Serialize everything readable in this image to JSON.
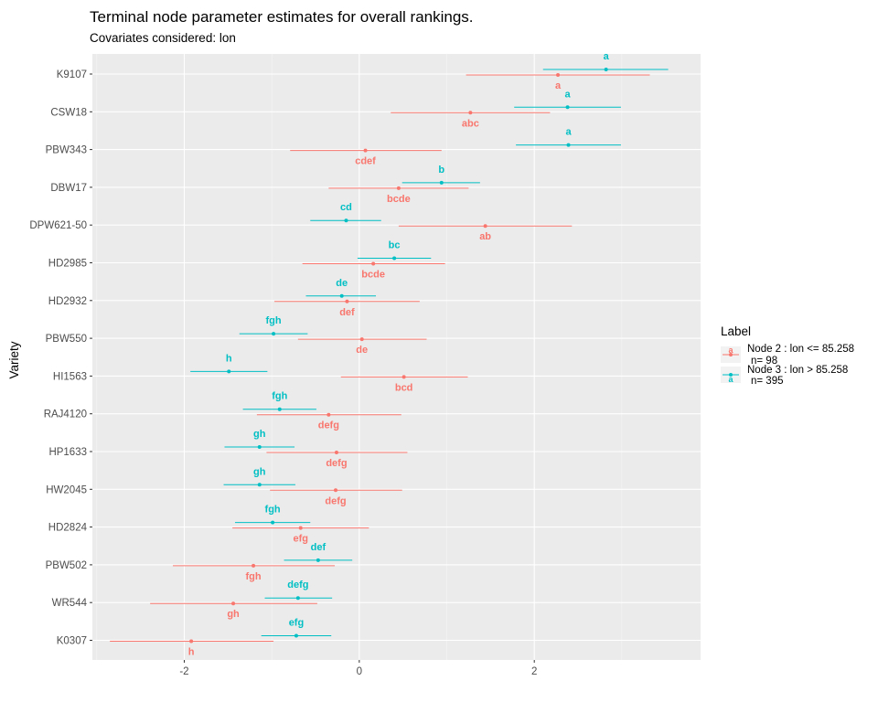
{
  "chart_data": {
    "type": "scatter",
    "title": "Terminal node parameter estimates for overall rankings.",
    "subtitle": "Covariates considered: lon",
    "xlabel": "",
    "ylabel": "Variety",
    "xlim": [
      -3.05,
      3.9
    ],
    "x_ticks": [
      "-2",
      "0",
      "2"
    ],
    "x_tick_values": [
      -2,
      0,
      2
    ],
    "categories": [
      "K9107",
      "CSW18",
      "PBW343",
      "DBW17",
      "DPW621-50",
      "HD2985",
      "HD2932",
      "PBW550",
      "HI1563",
      "RAJ4120",
      "HP1633",
      "HW2045",
      "HD2824",
      "PBW502",
      "WR544",
      "K0307"
    ],
    "legend": {
      "title": "Label",
      "position": "right",
      "entries": [
        {
          "line1": "Node 2 : lon <= 85.258",
          "line2": "n= 98"
        },
        {
          "line1": "Node 3 : lon > 85.258",
          "line2": "n= 395"
        }
      ]
    },
    "grid": true,
    "series": [
      {
        "color": "#F8766D",
        "legend_glyph": "a",
        "points": [
          {
            "est": 2.27,
            "lo": 1.22,
            "hi": 3.32,
            "group": "a"
          },
          {
            "est": 1.27,
            "lo": 0.36,
            "hi": 2.18,
            "group": "abc"
          },
          {
            "est": 0.07,
            "lo": -0.79,
            "hi": 0.94,
            "group": "cdef"
          },
          {
            "est": 0.45,
            "lo": -0.35,
            "hi": 1.25,
            "group": "bcde"
          },
          {
            "est": 1.44,
            "lo": 0.45,
            "hi": 2.43,
            "group": "ab"
          },
          {
            "est": 0.16,
            "lo": -0.65,
            "hi": 0.98,
            "group": "bcde"
          },
          {
            "est": -0.14,
            "lo": -0.97,
            "hi": 0.69,
            "group": "def"
          },
          {
            "est": 0.03,
            "lo": -0.7,
            "hi": 0.77,
            "group": "de"
          },
          {
            "est": 0.51,
            "lo": -0.21,
            "hi": 1.24,
            "group": "bcd"
          },
          {
            "est": -0.35,
            "lo": -1.17,
            "hi": 0.48,
            "group": "defg"
          },
          {
            "est": -0.26,
            "lo": -1.06,
            "hi": 0.55,
            "group": "defg"
          },
          {
            "est": -0.27,
            "lo": -1.02,
            "hi": 0.49,
            "group": "defg"
          },
          {
            "est": -0.67,
            "lo": -1.45,
            "hi": 0.11,
            "group": "efg"
          },
          {
            "est": -1.21,
            "lo": -2.13,
            "hi": -0.28,
            "group": "fgh"
          },
          {
            "est": -1.44,
            "lo": -2.39,
            "hi": -0.48,
            "group": "gh"
          },
          {
            "est": -1.92,
            "lo": -2.85,
            "hi": -0.98,
            "group": "h"
          }
        ]
      },
      {
        "color": "#00BFC4",
        "legend_glyph": "a",
        "points": [
          {
            "est": 2.82,
            "lo": 2.1,
            "hi": 3.53,
            "group": "a"
          },
          {
            "est": 2.38,
            "lo": 1.77,
            "hi": 2.99,
            "group": "a"
          },
          {
            "est": 2.39,
            "lo": 1.79,
            "hi": 2.99,
            "group": "a"
          },
          {
            "est": 0.94,
            "lo": 0.49,
            "hi": 1.38,
            "group": "b"
          },
          {
            "est": -0.15,
            "lo": -0.56,
            "hi": 0.25,
            "group": "cd"
          },
          {
            "est": 0.4,
            "lo": -0.02,
            "hi": 0.82,
            "group": "bc"
          },
          {
            "est": -0.2,
            "lo": -0.61,
            "hi": 0.19,
            "group": "de"
          },
          {
            "est": -0.98,
            "lo": -1.37,
            "hi": -0.59,
            "group": "fgh"
          },
          {
            "est": -1.49,
            "lo": -1.93,
            "hi": -1.05,
            "group": "h"
          },
          {
            "est": -0.91,
            "lo": -1.33,
            "hi": -0.49,
            "group": "fgh"
          },
          {
            "est": -1.14,
            "lo": -1.54,
            "hi": -0.74,
            "group": "gh"
          },
          {
            "est": -1.14,
            "lo": -1.55,
            "hi": -0.73,
            "group": "gh"
          },
          {
            "est": -0.99,
            "lo": -1.42,
            "hi": -0.56,
            "group": "fgh"
          },
          {
            "est": -0.47,
            "lo": -0.86,
            "hi": -0.08,
            "group": "def"
          },
          {
            "est": -0.7,
            "lo": -1.08,
            "hi": -0.31,
            "group": "defg"
          },
          {
            "est": -0.72,
            "lo": -1.12,
            "hi": -0.32,
            "group": "efg"
          }
        ]
      }
    ]
  }
}
